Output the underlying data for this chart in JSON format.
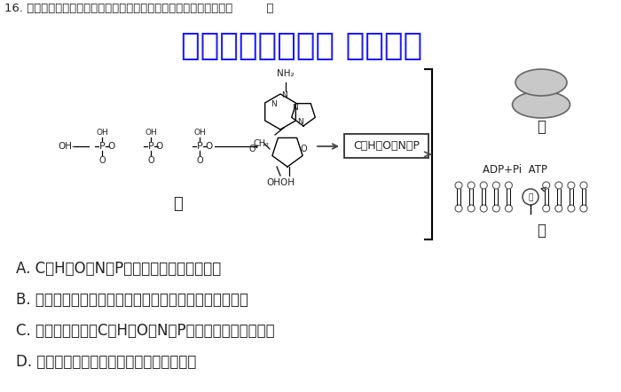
{
  "background_color": "#ffffff",
  "title_text": "16. 如图甲、乙、丙代表细胞中的物质或结构，下列分析中错误的是（         ）",
  "watermark_text": "微信公众号关注： 趣找答案",
  "watermark_color": "#1a1aff",
  "watermark_fontsize": 26,
  "label_jia": "甲",
  "label_yi": "乙",
  "label_bing": "丙",
  "elements_text": "C、H、O、N、P",
  "adp_atp_text": "ADP+Pi  ATP",
  "enzyme_text": "酶",
  "option_A": "A. C、H、O、N、P属于组成细胞的大量元素",
  "option_B": "B. 甲、乙所示的两种物质或结构参与了丙结构中酶的合成",
  "option_C": "C. 乙、丙结构中由C、H、O、N、P组成的化合物种类相同",
  "option_D": "D. 甲、乙所示的两种物质或结构中均含核糖",
  "title_fontsize": 9.5,
  "option_fontsize": 12,
  "label_fontsize": 12
}
